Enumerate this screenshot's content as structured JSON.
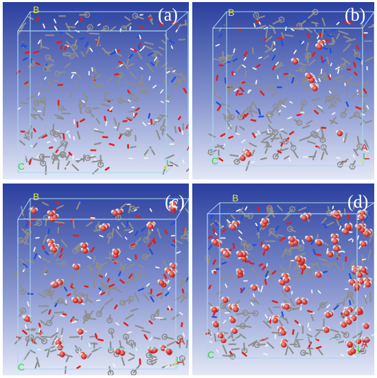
{
  "colors": {
    "bg_top": "#2a3f9e",
    "bg_bottom": "#e3e8f6",
    "box": "#a8d8ec",
    "stick_gray": "#8e8e8e",
    "oxygen": "#e0201c",
    "nitrogen": "#2050d8",
    "hydrogen": "#f4f4f4",
    "axis_a": "#d8262a",
    "axis_b": "#e8e830",
    "axis_c": "#40d040"
  },
  "panels": [
    {
      "id": "a",
      "label": "(a)",
      "water_clusters": 0,
      "axes": {
        "a": "A",
        "b": "B",
        "c": "C"
      }
    },
    {
      "id": "b",
      "label": "(b)",
      "water_clusters": 6,
      "axes": {
        "a": "A",
        "b": "B",
        "c": "C"
      }
    },
    {
      "id": "c",
      "label": "(c)",
      "water_clusters": 24,
      "axes": {
        "a": "A",
        "b": "B",
        "c": "C"
      }
    },
    {
      "id": "d",
      "label": "(d)",
      "water_clusters": 60,
      "axes": {
        "a": "A",
        "b": "B",
        "c": "C"
      }
    }
  ]
}
